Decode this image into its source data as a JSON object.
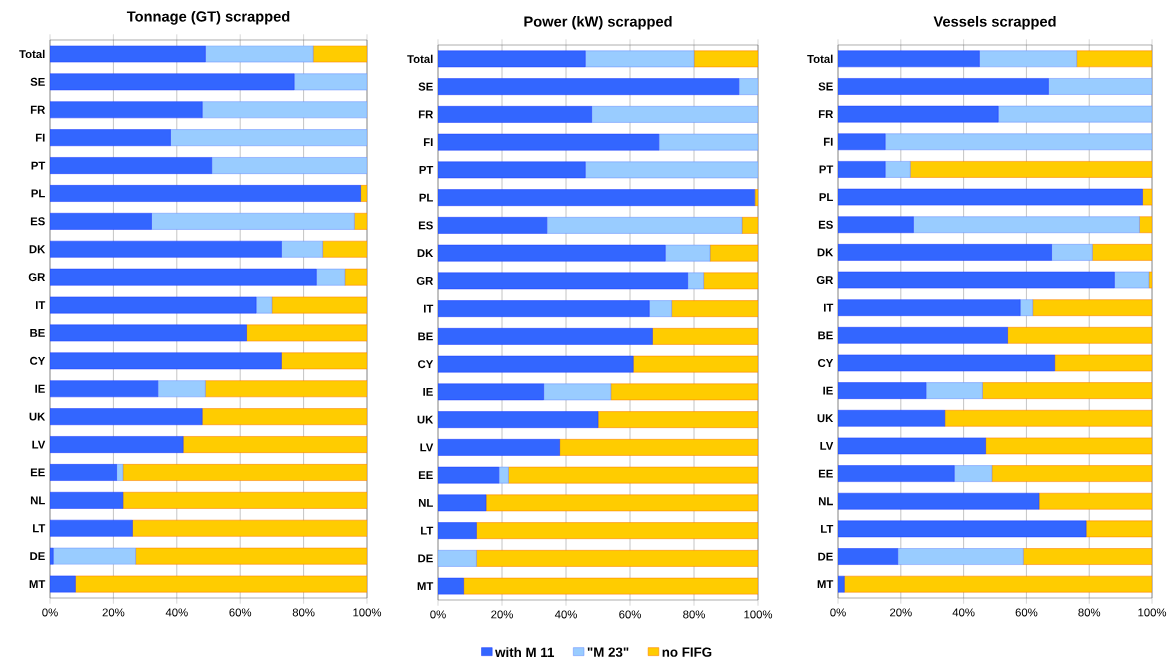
{
  "chart_data": [
    {
      "type": "bar",
      "orientation": "horizontal",
      "stacked": true,
      "title": "Tonnage (GT) scrapped",
      "grid": "x",
      "categories": [
        "Total",
        "SE",
        "FR",
        "FI",
        "PT",
        "PL",
        "ES",
        "DK",
        "GR",
        "IT",
        "BE",
        "CY",
        "IE",
        "UK",
        "LV",
        "EE",
        "NL",
        "LT",
        "DE",
        "MT"
      ],
      "xlim": [
        0,
        100
      ],
      "xticks": [
        {
          "value": 0,
          "label": "0%"
        },
        {
          "value": 20,
          "label": "20%"
        },
        {
          "value": 40,
          "label": "40%"
        },
        {
          "value": 60,
          "label": "60%"
        },
        {
          "value": 80,
          "label": "80%"
        },
        {
          "value": 100,
          "label": "100%"
        }
      ],
      "series": [
        {
          "color": "#3366ff",
          "values": [
            49,
            77,
            48,
            38,
            51,
            98,
            32,
            73,
            84,
            65,
            62,
            73,
            34,
            48,
            42,
            21,
            23,
            26,
            1,
            8
          ]
        },
        {
          "color": "#99ccff",
          "values": [
            34,
            23,
            52,
            62,
            49,
            0,
            64,
            13,
            9,
            5,
            0,
            0,
            15,
            0,
            0,
            2,
            0,
            0,
            26,
            0
          ]
        },
        {
          "color": "#ffcc00",
          "values": [
            17,
            0,
            0,
            0,
            0,
            2,
            4,
            14,
            7,
            30,
            38,
            27,
            51,
            52,
            58,
            77,
            77,
            74,
            73,
            92
          ]
        }
      ]
    },
    {
      "type": "bar",
      "orientation": "horizontal",
      "stacked": true,
      "title": "Power (kW) scrapped",
      "grid": "x",
      "legend": "bottom",
      "categories": [
        "Total",
        "SE",
        "FR",
        "FI",
        "PT",
        "PL",
        "ES",
        "DK",
        "GR",
        "IT",
        "BE",
        "CY",
        "IE",
        "UK",
        "LV",
        "EE",
        "NL",
        "LT",
        "DE",
        "MT"
      ],
      "xlim": [
        0,
        100
      ],
      "xticks": [
        {
          "value": 0,
          "label": "0%"
        },
        {
          "value": 20,
          "label": "20%"
        },
        {
          "value": 40,
          "label": "40%"
        },
        {
          "value": 60,
          "label": "60%"
        },
        {
          "value": 80,
          "label": "80%"
        },
        {
          "value": 100,
          "label": "100%"
        }
      ],
      "series": [
        {
          "name": "with M 11",
          "color": "#3366ff",
          "values": [
            46,
            94,
            48,
            69,
            46,
            99,
            34,
            71,
            78,
            66,
            67,
            61,
            33,
            50,
            38,
            19,
            15,
            12,
            0,
            8
          ]
        },
        {
          "name": "\"M 23\"",
          "color": "#99ccff",
          "values": [
            34,
            6,
            52,
            31,
            54,
            0,
            61,
            14,
            5,
            7,
            0,
            0,
            21,
            0,
            0,
            3,
            0,
            0,
            12,
            0
          ]
        },
        {
          "name": "no FIFG",
          "color": "#ffcc00",
          "values": [
            20,
            0,
            0,
            0,
            0,
            1,
            5,
            15,
            17,
            27,
            33,
            39,
            46,
            50,
            62,
            78,
            85,
            88,
            88,
            92
          ]
        }
      ]
    },
    {
      "type": "bar",
      "orientation": "horizontal",
      "stacked": true,
      "title": "Vessels scrapped",
      "grid": "x",
      "categories": [
        "Total",
        "SE",
        "FR",
        "FI",
        "PT",
        "PL",
        "ES",
        "DK",
        "GR",
        "IT",
        "BE",
        "CY",
        "IE",
        "UK",
        "LV",
        "EE",
        "NL",
        "LT",
        "DE",
        "MT"
      ],
      "xlim": [
        0,
        100
      ],
      "xticks": [
        {
          "value": 0,
          "label": "0%"
        },
        {
          "value": 20,
          "label": "20%"
        },
        {
          "value": 40,
          "label": "40%"
        },
        {
          "value": 60,
          "label": "60%"
        },
        {
          "value": 80,
          "label": "80%"
        },
        {
          "value": 100,
          "label": "100%"
        }
      ],
      "series": [
        {
          "color": "#3366ff",
          "values": [
            45,
            67,
            51,
            15,
            15,
            97,
            24,
            68,
            88,
            58,
            54,
            69,
            28,
            34,
            47,
            37,
            64,
            79,
            19,
            2
          ]
        },
        {
          "color": "#99ccff",
          "values": [
            31,
            33,
            49,
            85,
            8,
            0,
            72,
            13,
            11,
            4,
            0,
            0,
            18,
            0,
            0,
            12,
            0,
            0,
            40,
            0
          ]
        },
        {
          "color": "#ffcc00",
          "values": [
            24,
            0,
            0,
            0,
            77,
            3,
            4,
            19,
            1,
            38,
            46,
            31,
            54,
            66,
            53,
            51,
            36,
            21,
            41,
            98
          ]
        }
      ]
    }
  ]
}
